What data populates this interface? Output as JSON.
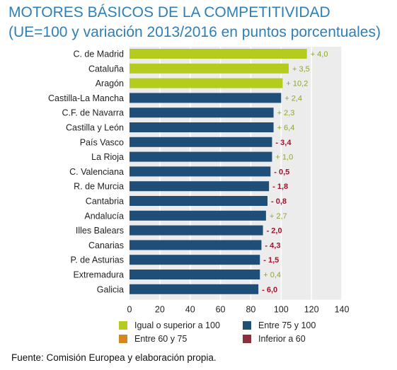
{
  "header": {
    "title": "MOTORES BÁSICOS DE LA COMPETITIVIDAD",
    "subtitle": "(UE=100 y variación 2013/2016 en puntos porcentuales)"
  },
  "chart_data": {
    "type": "bar",
    "orientation": "horizontal",
    "categories": [
      "C. de Madrid",
      "Cataluña",
      "Aragón",
      "Castilla-La Mancha",
      "C.F. de Navarra",
      "Castilla y León",
      "País Vasco",
      "La Rioja",
      "C. Valenciana",
      "R. de Murcia",
      "Cantabria",
      "Andalucía",
      "Illes Balears",
      "Canarias",
      "P. de Asturias",
      "Extremadura",
      "Galicia"
    ],
    "values": [
      117,
      105,
      101,
      100,
      95,
      95,
      94,
      94,
      93,
      92,
      91,
      90,
      88,
      87,
      86,
      86,
      85
    ],
    "groups": [
      "igual",
      "igual",
      "igual",
      "75_100",
      "75_100",
      "75_100",
      "75_100",
      "75_100",
      "75_100",
      "75_100",
      "75_100",
      "75_100",
      "75_100",
      "75_100",
      "75_100",
      "75_100",
      "75_100"
    ],
    "variation_labels": [
      "+ 4,0",
      "+ 3,5",
      "+ 10,2",
      "+ 2,4",
      "+ 2,3",
      "+ 6,4",
      "- 3,4",
      "+ 1,0",
      "- 0,5",
      "- 1,8",
      "- 0,8",
      "+ 2,7",
      "- 2,0",
      "- 4,3",
      "- 1,5",
      "+ 0,4",
      "- 6,0"
    ],
    "x_ticks": [
      "0",
      "20",
      "40",
      "60",
      "80",
      "100",
      "120",
      "140"
    ],
    "xlim": [
      0,
      140
    ],
    "grid": true,
    "legend": [
      {
        "key": "igual",
        "label": "Igual o superior a 100",
        "color": "#b5cc1f"
      },
      {
        "key": "75_100",
        "label": "Entre 75 y 100",
        "color": "#1f4e79"
      },
      {
        "key": "60_75",
        "label": "Entre 60 y 75",
        "color": "#d4871f"
      },
      {
        "key": "inf60",
        "label": "Inferior a 60",
        "color": "#8b2f3c"
      }
    ],
    "colors": {
      "positive_label": "#8aa82a",
      "negative_label": "#a3122e",
      "plot_background": "#ececec"
    }
  },
  "source": "Fuente: Comisión Europea y elaboración propia."
}
